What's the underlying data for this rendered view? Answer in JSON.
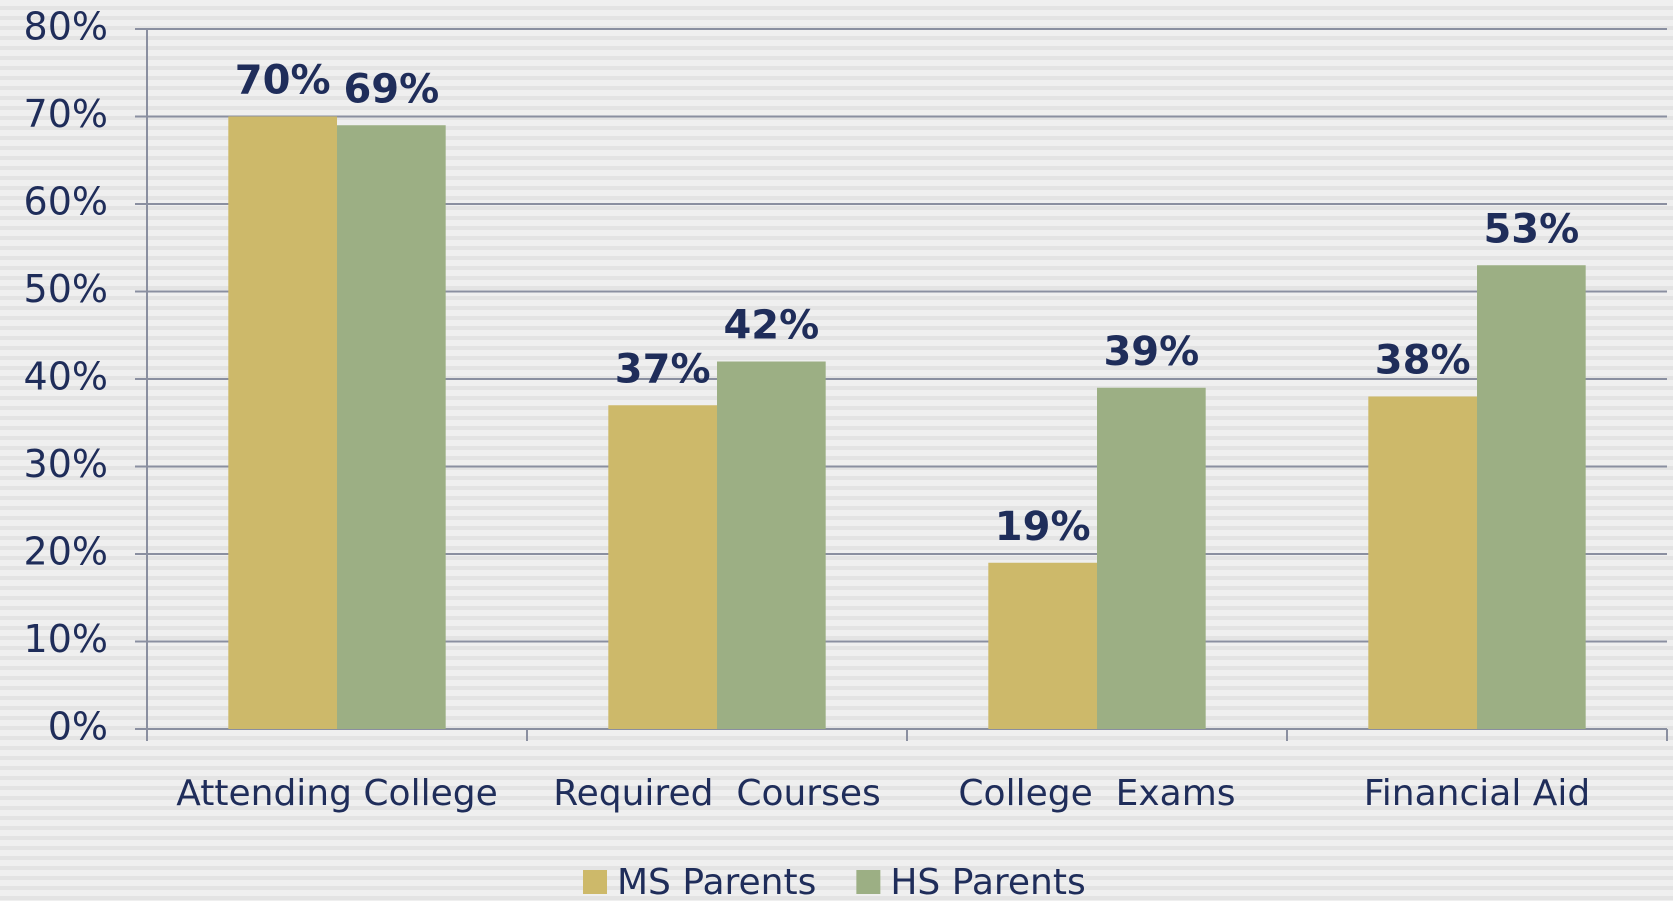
{
  "chart_data": {
    "type": "bar",
    "categories": [
      "Attending College",
      "Required  Courses",
      "College  Exams",
      "Financial Aid"
    ],
    "series": [
      {
        "name": "MS Parents",
        "color": "#cdb96a",
        "values": [
          70,
          37,
          19,
          38
        ],
        "value_labels": [
          "70%",
          "37%",
          "19%",
          "38%"
        ]
      },
      {
        "name": "HS Parents",
        "color": "#9caf84",
        "values": [
          69,
          42,
          39,
          53
        ],
        "value_labels": [
          "69%",
          "42%",
          "39%",
          "53%"
        ]
      }
    ],
    "ylim": [
      0,
      80
    ],
    "yticks": [
      {
        "value": 0,
        "label": "0%"
      },
      {
        "value": 10,
        "label": "10%"
      },
      {
        "value": 20,
        "label": "20%"
      },
      {
        "value": 30,
        "label": "30%"
      },
      {
        "value": 40,
        "label": "40%"
      },
      {
        "value": 50,
        "label": "50%"
      },
      {
        "value": 60,
        "label": "60%"
      },
      {
        "value": 70,
        "label": "70%"
      },
      {
        "value": 80,
        "label": "80%"
      }
    ],
    "grid": true
  }
}
